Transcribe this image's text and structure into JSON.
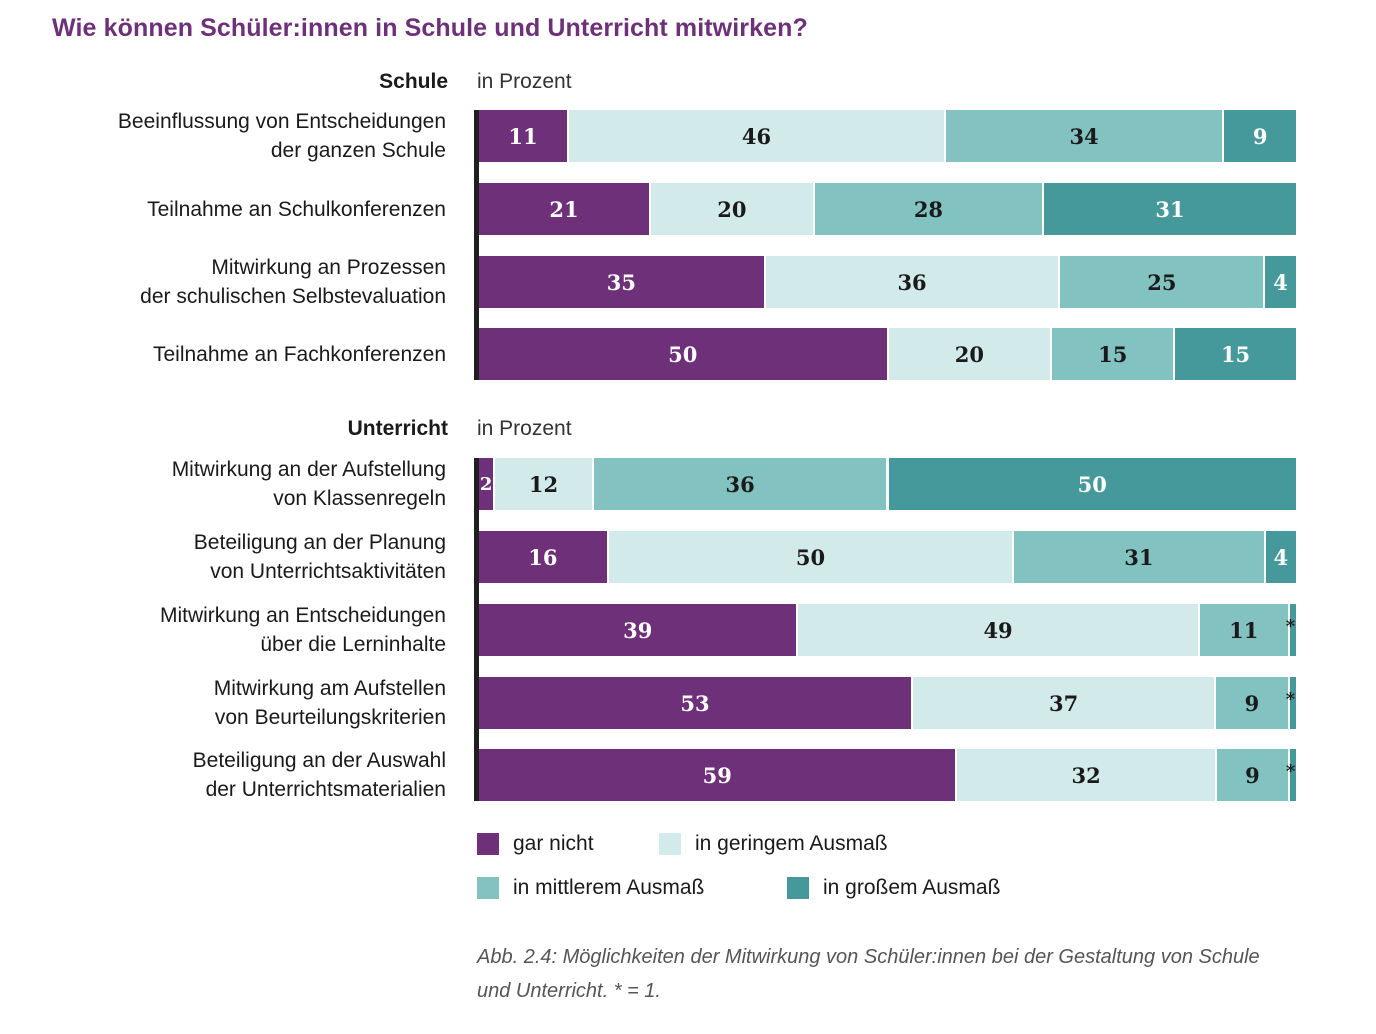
{
  "title": "Wie können Schüler:innen in Schule und Unterricht mitwirken?",
  "chart_data": {
    "type": "bar",
    "orientation": "horizontal-stacked-100",
    "unit_label": "in Prozent",
    "legend_placement": "bottom",
    "series_names": [
      "gar nicht",
      "in geringem Ausmaß",
      "in mittlerem Ausmaß",
      "in großem Ausmaß"
    ],
    "series_colors": [
      "#6d3079",
      "#d3eaea",
      "#82c2c0",
      "#45999a"
    ],
    "label_colors": [
      "#ffffff",
      "#1a1a1a",
      "#1a1a1a",
      "#ffffff"
    ],
    "groups": [
      {
        "name": "Schule",
        "unit_label": "in Prozent",
        "categories": [
          {
            "label": [
              "Beeinflussung von Entscheidungen",
              "der ganzen Schule"
            ],
            "values": [
              11,
              46,
              34,
              9
            ]
          },
          {
            "label": [
              "Teilnahme an Schulkonferenzen"
            ],
            "values": [
              21,
              20,
              28,
              31
            ]
          },
          {
            "label": [
              "Mitwirkung an Prozessen",
              "der schulischen Selbstevaluation"
            ],
            "values": [
              35,
              36,
              25,
              4
            ]
          },
          {
            "label": [
              "Teilnahme an Fachkonferenzen"
            ],
            "values": [
              50,
              20,
              15,
              15
            ]
          }
        ]
      },
      {
        "name": "Unterricht",
        "unit_label": "in Prozent",
        "categories": [
          {
            "label": [
              "Mitwirkung an der Aufstellung",
              "von Klassenregeln"
            ],
            "values": [
              2,
              12,
              36,
              50
            ]
          },
          {
            "label": [
              "Beteiligung an der Planung",
              "von Unterrichtsaktivitäten"
            ],
            "values": [
              16,
              50,
              31,
              4
            ]
          },
          {
            "label": [
              "Mitwirkung an Entscheidungen",
              "über die Lerninhalte"
            ],
            "values": [
              39,
              49,
              11,
              1
            ],
            "display": [
              "39",
              "49",
              "11",
              "*"
            ]
          },
          {
            "label": [
              "Mitwirkung am Aufstellen",
              "von Beurteilungskriterien"
            ],
            "values": [
              53,
              37,
              9,
              1
            ],
            "display": [
              "53",
              "37",
              "9",
              "*"
            ]
          },
          {
            "label": [
              "Beteiligung an der Auswahl",
              "der Unterrichtsmaterialien"
            ],
            "values": [
              59,
              32,
              9,
              1
            ],
            "display": [
              "59",
              "32",
              "9",
              "*"
            ]
          }
        ]
      }
    ],
    "xlim": [
      0,
      100
    ]
  },
  "caption": "Abb. 2.4: Möglichkeiten der Mitwirkung von Schüler:innen bei der Gestaltung von Schule und Unterricht. * = 1.",
  "footnote_symbol": "*",
  "footnote_value": 1
}
